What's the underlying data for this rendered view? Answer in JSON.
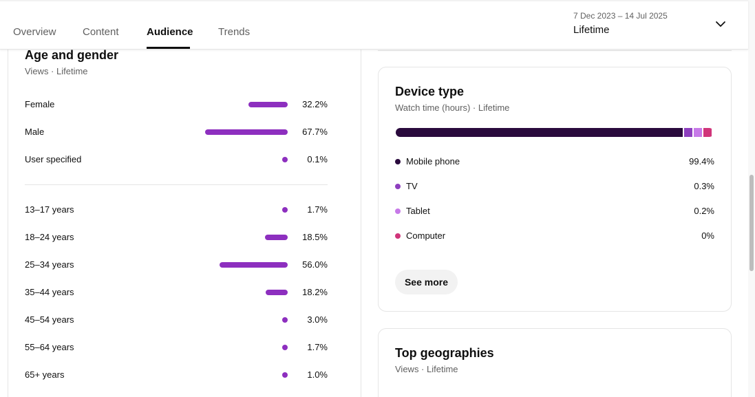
{
  "tabs": [
    {
      "label": "Overview"
    },
    {
      "label": "Content"
    },
    {
      "label": "Audience",
      "active": true
    },
    {
      "label": "Trends"
    }
  ],
  "date_range": {
    "range": "7 Dec 2023 – 14 Jul 2025",
    "label": "Lifetime"
  },
  "age_gender": {
    "title": "Age and gender",
    "subtitle": "Views · Lifetime",
    "bar_color": "#8d2fbf",
    "gender": [
      {
        "label": "Female",
        "pct": "32.2%",
        "value": 32.2
      },
      {
        "label": "Male",
        "pct": "67.7%",
        "value": 67.7
      },
      {
        "label": "User specified",
        "pct": "0.1%",
        "value": 0.1
      }
    ],
    "age": [
      {
        "label": "13–17 years",
        "pct": "1.7%",
        "value": 1.7
      },
      {
        "label": "18–24 years",
        "pct": "18.5%",
        "value": 18.5
      },
      {
        "label": "25–34 years",
        "pct": "56.0%",
        "value": 56.0
      },
      {
        "label": "35–44 years",
        "pct": "18.2%",
        "value": 18.2
      },
      {
        "label": "45–54 years",
        "pct": "3.0%",
        "value": 3.0
      },
      {
        "label": "55–64 years",
        "pct": "1.7%",
        "value": 1.7
      },
      {
        "label": "65+ years",
        "pct": "1.0%",
        "value": 1.0
      }
    ]
  },
  "device_type": {
    "title": "Device type",
    "subtitle": "Watch time (hours) · Lifetime",
    "items": [
      {
        "label": "Mobile phone",
        "pct": "99.4%",
        "value": 99.4,
        "color": "#2a0a3d"
      },
      {
        "label": "TV",
        "pct": "0.3%",
        "value": 0.3,
        "color": "#8e3fbf"
      },
      {
        "label": "Tablet",
        "pct": "0.2%",
        "value": 0.2,
        "color": "#c77ae8"
      },
      {
        "label": "Computer",
        "pct": "0%",
        "value": 0,
        "color": "#d0357a"
      }
    ],
    "see_more_label": "See more"
  },
  "top_geographies": {
    "title": "Top geographies",
    "subtitle": "Views · Lifetime"
  }
}
